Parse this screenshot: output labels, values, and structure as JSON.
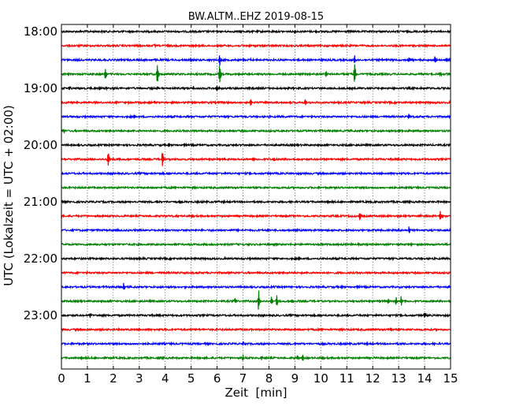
{
  "chart_data": {
    "type": "line",
    "title": "BW.ALTM..EHZ 2019-08-15",
    "xlabel": "Zeit  [min]",
    "ylabel": "UTC (Lokalzeit = UTC + 02:00)",
    "xlim": [
      0,
      15
    ],
    "x_ticks": [
      "0",
      "1",
      "2",
      "3",
      "4",
      "5",
      "6",
      "7",
      "8",
      "9",
      "10",
      "11",
      "12",
      "13",
      "14",
      "15"
    ],
    "y_ticks": [
      "18:00",
      "19:00",
      "20:00",
      "21:00",
      "22:00",
      "23:00"
    ],
    "grid_x": true,
    "trace_colors": [
      "#000000",
      "#ff0000",
      "#0000ff",
      "#008000"
    ],
    "traces": [
      {
        "start": "18:00",
        "color": "#000000",
        "events": [
          {
            "t": 9.0,
            "amp": 4
          }
        ]
      },
      {
        "start": "18:15",
        "color": "#ff0000",
        "events": [
          {
            "t": 3.6,
            "amp": 2
          }
        ]
      },
      {
        "start": "18:30",
        "color": "#0000ff",
        "events": [
          {
            "t": 6.1,
            "amp": 8
          },
          {
            "t": 7.3,
            "amp": 2
          },
          {
            "t": 11.3,
            "amp": 6
          },
          {
            "t": 13.4,
            "amp": 5
          },
          {
            "t": 14.4,
            "amp": 7
          }
        ]
      },
      {
        "start": "18:45",
        "color": "#008000",
        "events": [
          {
            "t": 1.7,
            "amp": 10
          },
          {
            "t": 3.7,
            "amp": 16
          },
          {
            "t": 6.1,
            "amp": 20
          },
          {
            "t": 10.2,
            "amp": 6
          },
          {
            "t": 11.3,
            "amp": 18
          },
          {
            "t": 14.6,
            "amp": 4
          }
        ]
      },
      {
        "start": "19:00",
        "color": "#000000",
        "events": [
          {
            "t": 0.3,
            "amp": 3
          },
          {
            "t": 2.0,
            "amp": 2
          },
          {
            "t": 3.7,
            "amp": 3
          },
          {
            "t": 5.1,
            "amp": 3
          },
          {
            "t": 6.0,
            "amp": 6
          }
        ]
      },
      {
        "start": "19:15",
        "color": "#ff0000",
        "events": [
          {
            "t": 3.6,
            "amp": 3
          },
          {
            "t": 7.3,
            "amp": 6
          },
          {
            "t": 9.4,
            "amp": 5
          }
        ]
      },
      {
        "start": "19:30",
        "color": "#0000ff",
        "events": [
          {
            "t": 13.4,
            "amp": 3
          }
        ]
      },
      {
        "start": "19:45",
        "color": "#008000",
        "events": [
          {
            "t": 0.1,
            "amp": 3
          },
          {
            "t": 13.0,
            "amp": 3
          }
        ]
      },
      {
        "start": "20:00",
        "color": "#000000",
        "events": []
      },
      {
        "start": "20:15",
        "color": "#ff0000",
        "events": [
          {
            "t": 1.8,
            "amp": 14
          },
          {
            "t": 3.9,
            "amp": 15
          },
          {
            "t": 6.3,
            "amp": 3
          },
          {
            "t": 8.2,
            "amp": 3
          }
        ]
      },
      {
        "start": "20:30",
        "color": "#0000ff",
        "events": []
      },
      {
        "start": "20:45",
        "color": "#008000",
        "events": []
      },
      {
        "start": "21:00",
        "color": "#000000",
        "events": [
          {
            "t": 3.7,
            "amp": 3
          }
        ]
      },
      {
        "start": "21:15",
        "color": "#ff0000",
        "events": [
          {
            "t": 4.5,
            "amp": 2
          },
          {
            "t": 11.5,
            "amp": 6
          },
          {
            "t": 13.8,
            "amp": 4
          },
          {
            "t": 14.6,
            "amp": 8
          }
        ]
      },
      {
        "start": "21:30",
        "color": "#0000ff",
        "events": [
          {
            "t": 13.4,
            "amp": 6
          }
        ]
      },
      {
        "start": "21:45",
        "color": "#008000",
        "events": []
      },
      {
        "start": "22:00",
        "color": "#000000",
        "events": []
      },
      {
        "start": "22:15",
        "color": "#ff0000",
        "events": []
      },
      {
        "start": "22:30",
        "color": "#0000ff",
        "events": [
          {
            "t": 2.4,
            "amp": 6
          }
        ]
      },
      {
        "start": "22:45",
        "color": "#008000",
        "events": [
          {
            "t": 6.7,
            "amp": 5
          },
          {
            "t": 7.6,
            "amp": 16
          },
          {
            "t": 8.1,
            "amp": 6
          },
          {
            "t": 8.3,
            "amp": 9
          },
          {
            "t": 8.9,
            "amp": 4
          },
          {
            "t": 12.6,
            "amp": 5
          },
          {
            "t": 12.9,
            "amp": 7
          },
          {
            "t": 13.1,
            "amp": 8
          }
        ]
      },
      {
        "start": "23:00",
        "color": "#000000",
        "events": [
          {
            "t": 1.1,
            "amp": 3
          },
          {
            "t": 14.0,
            "amp": 5
          }
        ]
      },
      {
        "start": "23:15",
        "color": "#ff0000",
        "events": [
          {
            "t": 12.7,
            "amp": 3
          }
        ]
      },
      {
        "start": "23:30",
        "color": "#0000ff",
        "events": [
          {
            "t": 7.0,
            "amp": 3
          }
        ]
      },
      {
        "start": "23:45",
        "color": "#008000",
        "events": [
          {
            "t": 7.0,
            "amp": 5
          },
          {
            "t": 7.7,
            "amp": 3
          },
          {
            "t": 9.1,
            "amp": 5
          },
          {
            "t": 9.3,
            "amp": 5
          }
        ]
      }
    ]
  }
}
